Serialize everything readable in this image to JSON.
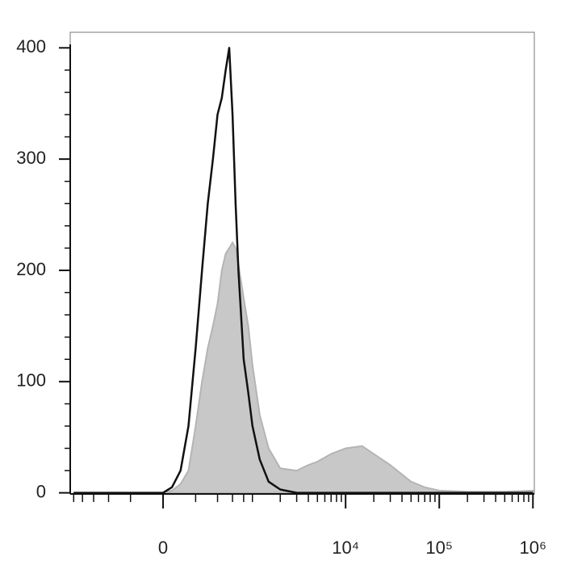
{
  "chart_data": {
    "type": "histogram-overlay",
    "xscale": {
      "type": "asinh",
      "cofactor": 225
    },
    "xlim": [
      -1091,
      1035000
    ],
    "ylim": [
      -1,
      414
    ],
    "xticks": [
      0,
      {
        "value": 10000,
        "label": "10⁴"
      },
      {
        "value": 100000,
        "label": "10⁵"
      },
      {
        "value": 1000000,
        "label": "10⁶"
      }
    ],
    "xminorticks": [
      -1000,
      -800,
      -600,
      -400,
      -200,
      200,
      400,
      600,
      800,
      1000,
      2000,
      3000,
      4000,
      5000,
      6000,
      7000,
      8000,
      9000,
      20000,
      30000,
      40000,
      50000,
      60000,
      70000,
      80000,
      90000,
      200000,
      300000,
      400000,
      500000,
      600000,
      700000,
      800000,
      900000
    ],
    "yticks": [
      0,
      100,
      200,
      300,
      400
    ],
    "yminorticks": [
      20,
      40,
      60,
      80,
      120,
      140,
      160,
      180,
      220,
      240,
      260,
      280,
      320,
      340,
      360,
      380
    ],
    "x": [
      -1000,
      -500,
      -200,
      0,
      50,
      100,
      150,
      200,
      250,
      300,
      350,
      400,
      450,
      500,
      550,
      600,
      650,
      700,
      800,
      900,
      1000,
      1200,
      1500,
      2000,
      3000,
      4000,
      5000,
      7000,
      10000,
      15000,
      20000,
      30000,
      50000,
      70000,
      100000,
      200000,
      500000,
      1000000
    ],
    "series": [
      {
        "color": "#c8c8c8",
        "stroke": "#b4b4b4",
        "fill": true,
        "values": [
          0,
          0,
          0,
          0,
          2,
          8,
          20,
          60,
          100,
          130,
          150,
          170,
          200,
          215,
          220,
          225,
          220,
          205,
          175,
          150,
          115,
          70,
          40,
          22,
          20,
          25,
          28,
          35,
          40,
          42,
          35,
          25,
          10,
          5,
          2,
          1,
          1,
          2
        ]
      },
      {
        "color": "#111111",
        "fill": false,
        "values": [
          0,
          0,
          0,
          0,
          5,
          20,
          60,
          130,
          200,
          260,
          300,
          340,
          355,
          380,
          400,
          340,
          260,
          200,
          120,
          90,
          60,
          30,
          10,
          3,
          0,
          0,
          0,
          0,
          0,
          0,
          0,
          0,
          0,
          0,
          0,
          0,
          0,
          0
        ]
      }
    ]
  }
}
